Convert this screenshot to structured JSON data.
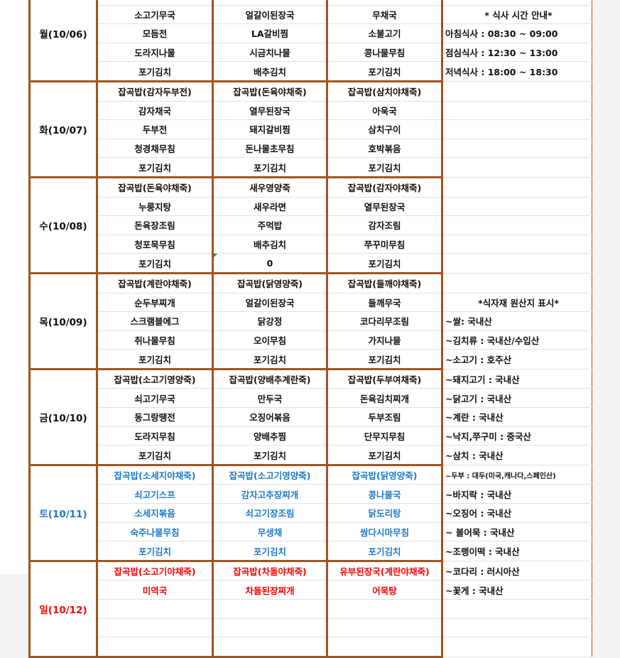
{
  "colors": {
    "border": "#a4531c",
    "weekday_text": "#111111",
    "saturday_text": "#1f7ac8",
    "sunday_text": "#ff0000",
    "background": "#f3f3f3"
  },
  "days": [
    {
      "label": "월(10/06)",
      "color": "default",
      "meals": [
        [
          "",
          "소고기무국",
          "모듬전",
          "도라지나물",
          "포기김치"
        ],
        [
          "",
          "얼갈이된장국",
          "LA갈비찜",
          "시금치나물",
          "배추김치"
        ],
        [
          "",
          "무채국",
          "소불고기",
          "콩나물무침",
          "포기김치"
        ]
      ]
    },
    {
      "label": "화(10/07)",
      "color": "default",
      "meals": [
        [
          "잡곡밥(감자두부전)",
          "감자채국",
          "두부전",
          "청경채무침",
          "포기김치"
        ],
        [
          "잡곡밥(돈육야채죽)",
          "열무된장국",
          "돼지갈비찜",
          "돈나물초무침",
          "포기김치"
        ],
        [
          "잡곡밥(삼치야채죽)",
          "아욱국",
          "삼치구이",
          "호박볶음",
          "포기김치"
        ]
      ]
    },
    {
      "label": "수(10/08)",
      "color": "default",
      "meals": [
        [
          "잡곡밥(돈육야채죽)",
          "누룽지탕",
          "돈육장조림",
          "청포묵무침",
          "포기김치"
        ],
        [
          "새우영양죽",
          "새우라면",
          "주먹밥",
          "배추김치",
          "0"
        ],
        [
          "잡곡밥(감자야채죽)",
          "열무된장국",
          "감자조림",
          "쭈꾸미무침",
          "포기김치"
        ]
      ]
    },
    {
      "label": "목(10/09)",
      "color": "default",
      "meals": [
        [
          "잡곡밥(계란야채죽)",
          "순두부찌개",
          "스크램블에그",
          "취나물무침",
          "포기김치"
        ],
        [
          "잡곡밥(닭영양죽)",
          "얼갈이된장국",
          "닭강정",
          "오이무침",
          "포기김치"
        ],
        [
          "잡곡밥(들깨야채죽)",
          "들깨무국",
          "코다리무조림",
          "가지나물",
          "포기김치"
        ]
      ]
    },
    {
      "label": "금(10/10)",
      "color": "default",
      "meals": [
        [
          "잡곡밥(소고기영양죽)",
          "쇠고기무국",
          "동그랑땡전",
          "도라지무침",
          "포기김치"
        ],
        [
          "잡곡밥(양배추계란죽)",
          "만두국",
          "오징어볶음",
          "양배추찜",
          "포기김치"
        ],
        [
          "잡곡밥(두부여채죽)",
          "돈육김치찌개",
          "두부조림",
          "단무지무침",
          "포기김치"
        ]
      ]
    },
    {
      "label": "토(10/11)",
      "color": "blue",
      "meals": [
        [
          "잡곡밥(소세지야채죽)",
          "쇠고기스프",
          "소세지볶음",
          "숙주나물무침",
          "포기김치"
        ],
        [
          "잡곡밥(소고기영양죽)",
          "감자고추장찌개",
          "쇠고기장조림",
          "무생채",
          "포기김치"
        ],
        [
          "잡곡밥(닭영양죽)",
          "콩나물국",
          "닭도리탕",
          "쌈다시마무침",
          "포기김치"
        ]
      ]
    },
    {
      "label": "일(10/12)",
      "color": "red",
      "meals": [
        [
          "잡곡밥(소고기야채죽)",
          "미역국",
          "",
          "",
          ""
        ],
        [
          "잡곡밥(차돌야채죽)",
          "차돌된장찌개",
          "",
          "",
          ""
        ],
        [
          "유부된장국(계란야채죽)",
          "어묵탕",
          "",
          "",
          ""
        ]
      ]
    }
  ],
  "info": [
    "",
    "* 식사 시간 안내*",
    "아침식사 : 08:30 ~ 09:00",
    "점심식사 : 12:30 ~ 13:00",
    "저녁식사 : 18:00 ~ 18:30",
    "",
    "",
    "",
    "",
    "",
    "",
    "",
    "",
    "",
    "",
    "",
    "*식자재 원산지 표시*",
    "~쌀: 국내산",
    "~김치류 : 국내산/수입산",
    "~소고기 : 호주산",
    "~돼지고기 : 국내산",
    "~닭고기 : 국내산",
    "~계란 : 국내산",
    "~낙지,쭈구미 : 중국산",
    "~삼치 : 국내산",
    "~두부 : 대두(미국,캐나다,스페인산)",
    "~바지락 : 국내산",
    "~오징어 : 국내산",
    "~ 볼어묵 : 국내산",
    "~조랭이떡 : 국내산",
    "~코다리 : 러시아산",
    "~꽃게 : 국내산",
    "",
    "",
    ""
  ]
}
